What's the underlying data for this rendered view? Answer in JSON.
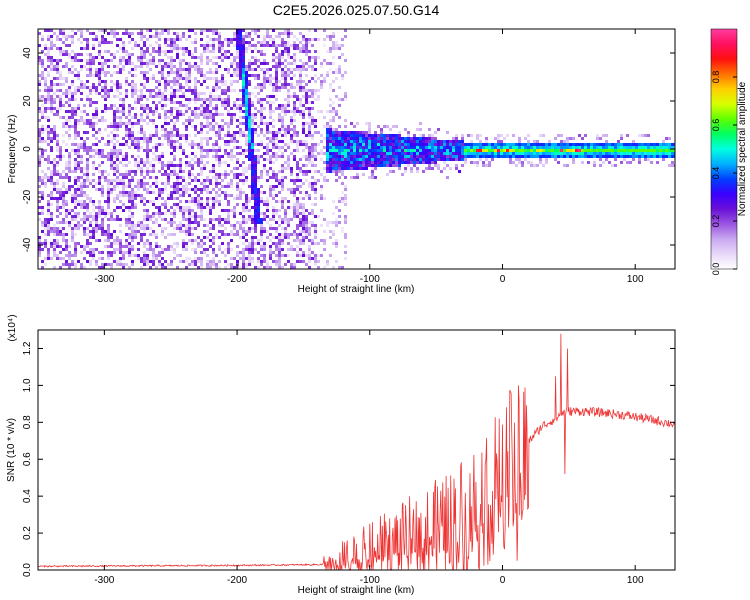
{
  "title": "C2E5.2026.025.07.50.G14",
  "chart_data": [
    {
      "type": "heatmap",
      "xlabel": "Height of straight line (km)",
      "ylabel": "Frequency (Hz)",
      "xlim": [
        -350,
        130
      ],
      "ylim": [
        -50,
        50
      ],
      "xticks": [
        -300,
        -200,
        -100,
        0,
        100
      ],
      "yticks": [
        -40,
        -20,
        0,
        20,
        40
      ],
      "colorbar": {
        "label": "Normalized spectral amplitude",
        "range": [
          0,
          1
        ],
        "ticks": [
          "0.0",
          "0.2",
          "0.4",
          "0.6",
          "0.8"
        ],
        "colormap": [
          "#ffffff",
          "#e8d8f8",
          "#c9a8f0",
          "#9a55e0",
          "#6a10d8",
          "#3a00ff",
          "#0040ff",
          "#00b0ff",
          "#00ffe0",
          "#00ff60",
          "#60ff00",
          "#d8ff00",
          "#ffd000",
          "#ff7000",
          "#ff1010",
          "#ff1060",
          "#ff3c9e"
        ]
      },
      "features": [
        {
          "name": "noise-region",
          "x_range": [
            -350,
            -120
          ],
          "freq_range": [
            -50,
            50
          ]
        },
        {
          "name": "diagonal-streak",
          "points": [
            [
              -200,
              50
            ],
            [
              -190,
              0
            ],
            [
              -185,
              -30
            ]
          ]
        },
        {
          "name": "signal-band",
          "x_range": [
            -135,
            130
          ],
          "center_hz": 0,
          "halfwidth_hz": [
            8,
            2
          ]
        }
      ]
    },
    {
      "type": "line",
      "xlabel": "Height of straight line (km)",
      "ylabel": "SNR (10 * v/v)",
      "multiplier": "(x10⁴)",
      "xlim": [
        -350,
        130
      ],
      "ylim": [
        0,
        1.3
      ],
      "xticks": [
        -300,
        -200,
        -100,
        0,
        100
      ],
      "yticks": [
        "0.0",
        "0.2",
        "0.4",
        "0.6",
        "0.8",
        "1.0",
        "1.2"
      ],
      "color": "#ee3333",
      "series": [
        {
          "name": "SNR",
          "x": [
            -350,
            -200,
            -130,
            -120,
            -100,
            -80,
            -60,
            -40,
            -20,
            0,
            10,
            20,
            30,
            40,
            45,
            50,
            60,
            80,
            100,
            130
          ],
          "y": [
            0.02,
            0.025,
            0.03,
            0.05,
            0.1,
            0.15,
            0.2,
            0.25,
            0.38,
            0.55,
            0.62,
            0.7,
            0.78,
            0.82,
            0.85,
            0.86,
            0.86,
            0.85,
            0.83,
            0.79
          ]
        }
      ],
      "spikes": [
        {
          "x": 11,
          "y": 0.05
        },
        {
          "x": 12,
          "y": 1.0
        },
        {
          "x": 40,
          "y": 1.05
        },
        {
          "x": 44,
          "y": 1.28
        },
        {
          "x": 47,
          "y": 0.52
        },
        {
          "x": 49,
          "y": 1.2
        }
      ]
    }
  ]
}
